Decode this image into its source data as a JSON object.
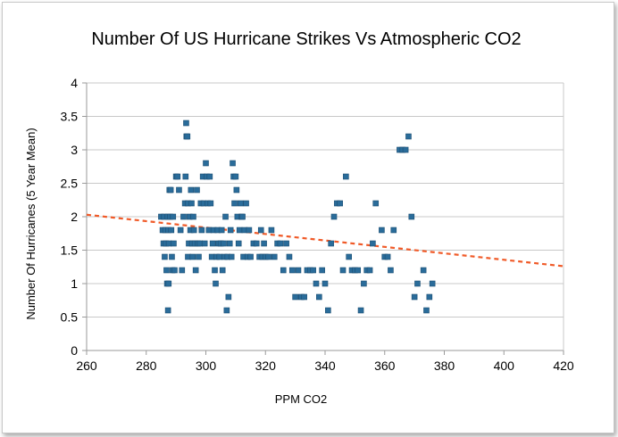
{
  "chart_data": {
    "type": "scatter",
    "title": "Number Of US Hurricane Strikes Vs Atmospheric CO2",
    "xlabel": "PPM CO2",
    "ylabel": "Number Of Hurricanes (5 Year Mean)",
    "xlim": [
      260,
      420
    ],
    "ylim": [
      0,
      4
    ],
    "x_ticks": [
      "260",
      "280",
      "300",
      "320",
      "340",
      "360",
      "380",
      "400",
      "420"
    ],
    "y_ticks": [
      "0",
      "0.5",
      "1",
      "1.5",
      "2",
      "2.5",
      "3",
      "3.5",
      "4"
    ],
    "grid": "horizontal",
    "legend": "none",
    "colors": {
      "points": "#2a6c9a",
      "trend": "#f05a28",
      "grid": "#c8c8c8"
    },
    "trendline": {
      "style": "dashed",
      "x": [
        260,
        420
      ],
      "y": [
        2.03,
        1.26
      ]
    },
    "series": [
      {
        "points": [
          [
            285,
            2.0
          ],
          [
            285.5,
            1.8
          ],
          [
            285.8,
            1.6
          ],
          [
            286,
            2.0
          ],
          [
            286.2,
            1.4
          ],
          [
            286.4,
            1.8
          ],
          [
            286.6,
            1.6
          ],
          [
            286.8,
            1.2
          ],
          [
            287,
            1.0
          ],
          [
            287.2,
            2.0
          ],
          [
            287.3,
            0.6
          ],
          [
            287.4,
            1.8
          ],
          [
            287.5,
            1.0
          ],
          [
            287.6,
            1.6
          ],
          [
            287.8,
            2.4
          ],
          [
            288,
            2.0
          ],
          [
            288.2,
            2.4
          ],
          [
            288.4,
            1.8
          ],
          [
            288.6,
            1.4
          ],
          [
            288.8,
            1.2
          ],
          [
            289,
            2.0
          ],
          [
            289.2,
            1.6
          ],
          [
            289.5,
            1.2
          ],
          [
            290,
            2.6
          ],
          [
            290.5,
            2.6
          ],
          [
            291,
            2.4
          ],
          [
            291.5,
            1.8
          ],
          [
            292,
            1.2
          ],
          [
            292.5,
            2.0
          ],
          [
            293,
            2.2
          ],
          [
            293.2,
            2.6
          ],
          [
            293.4,
            3.4
          ],
          [
            293.5,
            3.2
          ],
          [
            293.8,
            3.2
          ],
          [
            294,
            2.2
          ],
          [
            294,
            1.4
          ],
          [
            294.3,
            1.6
          ],
          [
            294.5,
            2.0
          ],
          [
            294.8,
            1.8
          ],
          [
            295,
            2.4
          ],
          [
            295.2,
            2.2
          ],
          [
            295.4,
            1.6
          ],
          [
            295.6,
            1.4
          ],
          [
            295.8,
            2.0
          ],
          [
            296,
            1.8
          ],
          [
            296.3,
            1.6
          ],
          [
            296.6,
            1.2
          ],
          [
            297,
            2.4
          ],
          [
            297.3,
            1.6
          ],
          [
            297.6,
            1.4
          ],
          [
            298,
            1.6
          ],
          [
            298.3,
            2.2
          ],
          [
            298.6,
            1.8
          ],
          [
            299,
            2.6
          ],
          [
            299.3,
            2.2
          ],
          [
            299.6,
            1.6
          ],
          [
            300,
            2.8
          ],
          [
            300.3,
            2.6
          ],
          [
            300.6,
            2.2
          ],
          [
            301,
            1.8
          ],
          [
            301.3,
            2.6
          ],
          [
            301.6,
            2.2
          ],
          [
            302,
            1.4
          ],
          [
            302.3,
            1.6
          ],
          [
            302.6,
            1.8
          ],
          [
            303,
            1.2
          ],
          [
            303.3,
            1.0
          ],
          [
            303.6,
            1.4
          ],
          [
            304,
            1.8
          ],
          [
            304.3,
            1.6
          ],
          [
            304.6,
            1.4
          ],
          [
            305,
            1.6
          ],
          [
            305.3,
            1.8
          ],
          [
            305.6,
            1.2
          ],
          [
            306,
            1.6
          ],
          [
            306.3,
            1.4
          ],
          [
            306.6,
            2.0
          ],
          [
            307,
            0.6
          ],
          [
            307.3,
            1.4
          ],
          [
            307.6,
            0.8
          ],
          [
            308,
            1.6
          ],
          [
            308.3,
            1.8
          ],
          [
            308.6,
            1.4
          ],
          [
            309,
            2.8
          ],
          [
            309.3,
            2.6
          ],
          [
            309.6,
            2.2
          ],
          [
            310,
            2.6
          ],
          [
            310.3,
            2.4
          ],
          [
            310.6,
            2.0
          ],
          [
            311,
            1.6
          ],
          [
            311.3,
            1.8
          ],
          [
            311.6,
            2.2
          ],
          [
            312,
            2.0
          ],
          [
            312.3,
            2.0
          ],
          [
            312.6,
            1.4
          ],
          [
            313,
            1.8
          ],
          [
            313.5,
            2.2
          ],
          [
            314,
            1.4
          ],
          [
            314.5,
            1.8
          ],
          [
            315,
            1.4
          ],
          [
            316,
            1.6
          ],
          [
            317,
            1.6
          ],
          [
            318,
            1.4
          ],
          [
            318.5,
            1.8
          ],
          [
            319,
            1.4
          ],
          [
            319.5,
            1.6
          ],
          [
            320,
            1.4
          ],
          [
            321,
            1.4
          ],
          [
            322,
            1.8
          ],
          [
            323,
            1.4
          ],
          [
            324,
            1.6
          ],
          [
            325,
            1.6
          ],
          [
            326,
            1.2
          ],
          [
            327,
            1.6
          ],
          [
            328,
            1.4
          ],
          [
            329,
            1.2
          ],
          [
            330,
            0.8
          ],
          [
            331,
            1.2
          ],
          [
            332,
            0.8
          ],
          [
            333,
            0.8
          ],
          [
            334,
            1.2
          ],
          [
            335,
            1.2
          ],
          [
            336,
            1.2
          ],
          [
            337,
            1.0
          ],
          [
            338,
            0.8
          ],
          [
            339,
            1.2
          ],
          [
            340,
            1.0
          ],
          [
            341,
            0.6
          ],
          [
            342,
            1.6
          ],
          [
            343,
            2.0
          ],
          [
            344,
            2.2
          ],
          [
            345,
            2.2
          ],
          [
            346,
            1.2
          ],
          [
            347,
            2.6
          ],
          [
            348,
            1.4
          ],
          [
            349,
            1.2
          ],
          [
            350,
            1.2
          ],
          [
            351,
            1.2
          ],
          [
            352,
            0.6
          ],
          [
            353,
            1.0
          ],
          [
            354,
            1.2
          ],
          [
            355,
            1.2
          ],
          [
            356,
            1.6
          ],
          [
            357,
            2.2
          ],
          [
            359,
            1.8
          ],
          [
            360,
            1.4
          ],
          [
            361,
            1.4
          ],
          [
            362,
            1.2
          ],
          [
            363,
            1.8
          ],
          [
            365,
            3.0
          ],
          [
            366,
            3.0
          ],
          [
            367,
            3.0
          ],
          [
            368,
            3.2
          ],
          [
            369,
            2.0
          ],
          [
            370,
            0.8
          ],
          [
            371,
            1.0
          ],
          [
            373,
            1.2
          ],
          [
            374,
            0.6
          ],
          [
            375,
            0.8
          ],
          [
            376,
            1.0
          ]
        ]
      }
    ]
  }
}
